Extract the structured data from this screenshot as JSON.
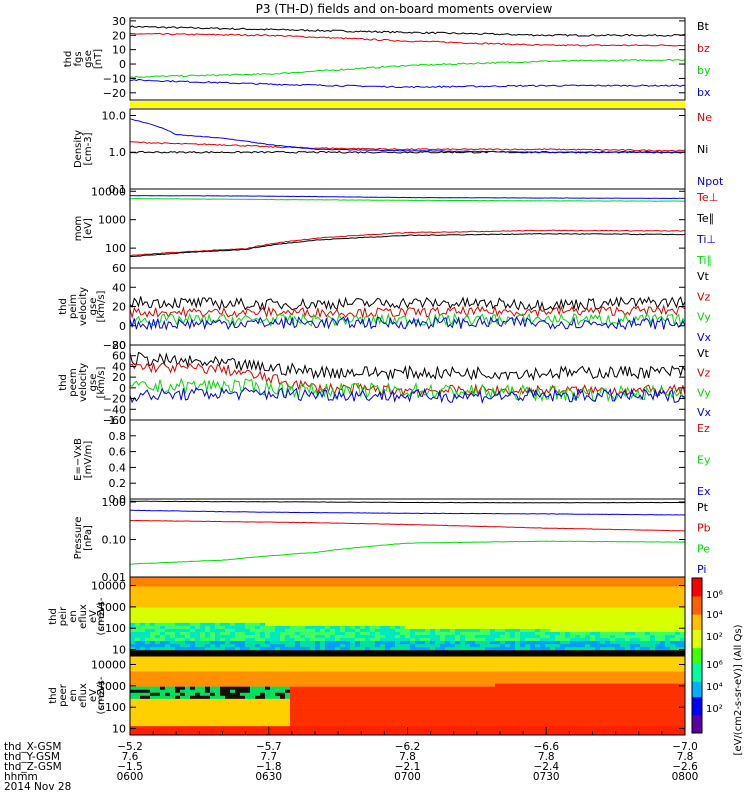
{
  "title": "P3 (TH-D) fields and on-board moments overview",
  "colors": {
    "black": "#000000",
    "red": "#e00000",
    "green": "#00dd00",
    "blue": "#0000ee",
    "yellow": "#ffff00"
  },
  "chart_data": [
    {
      "type": "line",
      "id": "fgs",
      "ylabel": [
        "thd",
        "fgs",
        "gse",
        "[nT]"
      ],
      "ylim": [
        -25,
        32
      ],
      "scale": "linear",
      "ticks": [
        "30",
        "20",
        "10",
        "0",
        "−10",
        "−20"
      ],
      "tickvals": [
        30,
        20,
        10,
        0,
        -10,
        -20
      ],
      "x": [
        0,
        30,
        60,
        90,
        120
      ],
      "series": [
        {
          "name": "Bt",
          "color": "black",
          "values": [
            26,
            24,
            22,
            20,
            20
          ],
          "noise": 0.6
        },
        {
          "name": "bz",
          "color": "red",
          "values": [
            21,
            20,
            16,
            13,
            13
          ],
          "noise": 0.5
        },
        {
          "name": "by",
          "color": "green",
          "values": [
            -9,
            -7,
            -1,
            2,
            3
          ],
          "noise": 0.5
        },
        {
          "name": "bx",
          "color": "blue",
          "values": [
            -11,
            -14,
            -16,
            -15,
            -15
          ],
          "noise": 0.5
        }
      ]
    },
    {
      "type": "line",
      "id": "density",
      "ylabel": [
        "Density",
        "[cm-3]"
      ],
      "ylim": [
        0.1,
        15
      ],
      "scale": "log",
      "ticks": [
        "10.0",
        "1.0",
        "0.1"
      ],
      "tickvals": [
        10,
        1,
        0.1
      ],
      "x": [
        0,
        10,
        20,
        30,
        40,
        60,
        90,
        120
      ],
      "series": [
        {
          "name": "Ne",
          "color": "red",
          "values": [
            1.9,
            1.7,
            1.6,
            1.4,
            1.3,
            1.2,
            1.2,
            1.1
          ],
          "noise": 0.04
        },
        {
          "name": "Ni",
          "color": "black",
          "values": [
            1.0,
            1.0,
            1.0,
            1.0,
            1.0,
            1.0,
            1.0,
            1.0
          ],
          "noise": 0.05
        },
        {
          "name": "Npot",
          "color": "blue",
          "values": [
            8,
            3,
            2.4,
            1.6,
            1.2,
            1.1,
            1.0,
            1.0
          ],
          "noise": 0.02
        }
      ]
    },
    {
      "type": "line",
      "id": "temperature",
      "ylabel": [
        "mom",
        "[eV]"
      ],
      "ylim": [
        20,
        12000
      ],
      "scale": "log",
      "ticks": [
        "10000",
        "1000",
        "100"
      ],
      "tickvals": [
        10000,
        1000,
        100
      ],
      "x": [
        0,
        25,
        40,
        60,
        90,
        120
      ],
      "series": [
        {
          "name": "Te⊥",
          "color": "red",
          "values": [
            55,
            95,
            220,
            350,
            420,
            400
          ],
          "noise": 0.03
        },
        {
          "name": "Te∥",
          "color": "black",
          "values": [
            50,
            90,
            190,
            280,
            320,
            300
          ],
          "noise": 0.03
        },
        {
          "name": "Ti⊥",
          "color": "blue",
          "values": [
            7000,
            6800,
            6500,
            6000,
            5800,
            5600
          ],
          "noise": 0.01
        },
        {
          "name": "Ti∥",
          "color": "green",
          "values": [
            5500,
            5200,
            5000,
            4800,
            4600,
            4500
          ],
          "noise": 0.01
        }
      ]
    },
    {
      "type": "line",
      "id": "peim",
      "ylabel": [
        "thd",
        "peim",
        "velocity",
        "gse",
        "[km/s]"
      ],
      "ylim": [
        -20,
        60
      ],
      "scale": "linear",
      "ticks": [
        "60",
        "40",
        "20",
        "0",
        "−20"
      ],
      "tickvals": [
        60,
        40,
        20,
        0,
        -20
      ],
      "x": [
        0,
        30,
        60,
        90,
        120
      ],
      "series": [
        {
          "name": "Vt",
          "color": "black",
          "values": [
            25,
            22,
            24,
            22,
            25
          ],
          "noise": 6
        },
        {
          "name": "Vz",
          "color": "red",
          "values": [
            14,
            14,
            14,
            15,
            16
          ],
          "noise": 5
        },
        {
          "name": "Vy",
          "color": "green",
          "values": [
            6,
            6,
            6,
            7,
            6
          ],
          "noise": 6
        },
        {
          "name": "Vx",
          "color": "blue",
          "values": [
            2,
            3,
            3,
            3,
            2
          ],
          "noise": 6
        }
      ]
    },
    {
      "type": "line",
      "id": "peem",
      "ylabel": [
        "thd",
        "peem",
        "velocity",
        "gse",
        "[km/s]"
      ],
      "ylim": [
        -60,
        80
      ],
      "scale": "linear",
      "ticks": [
        "80",
        "60",
        "40",
        "20",
        "0",
        "−20",
        "−40",
        "−60"
      ],
      "tickvals": [
        80,
        60,
        40,
        20,
        0,
        -20,
        -40,
        -60
      ],
      "x": [
        0,
        20,
        40,
        60,
        90,
        120
      ],
      "series": [
        {
          "name": "Vt",
          "color": "black",
          "values": [
            55,
            45,
            30,
            28,
            28,
            30
          ],
          "noise": 12
        },
        {
          "name": "Vz",
          "color": "red",
          "values": [
            40,
            35,
            0,
            -5,
            -5,
            -5
          ],
          "noise": 10
        },
        {
          "name": "Vy",
          "color": "green",
          "values": [
            0,
            5,
            -5,
            -5,
            -10,
            -10
          ],
          "noise": 14
        },
        {
          "name": "Vx",
          "color": "blue",
          "values": [
            -15,
            -10,
            -12,
            -15,
            -15,
            -15
          ],
          "noise": 12
        }
      ]
    },
    {
      "type": "line",
      "id": "exb",
      "ylabel": [
        "E=−VxB",
        "[mV/m]"
      ],
      "ylim": [
        0,
        1
      ],
      "scale": "linear",
      "ticks": [
        "1.0",
        "0.8",
        "0.6",
        "0.4",
        "0.2",
        "0.0"
      ],
      "tickvals": [
        1,
        0.8,
        0.6,
        0.4,
        0.2,
        0
      ],
      "x": [],
      "series": [
        {
          "name": "Ez",
          "color": "red",
          "values": []
        },
        {
          "name": "Ey",
          "color": "green",
          "values": []
        },
        {
          "name": "Ex",
          "color": "blue",
          "values": []
        }
      ]
    },
    {
      "type": "line",
      "id": "pressure",
      "ylabel": [
        "Pressure",
        "[nPa]"
      ],
      "ylim": [
        0.01,
        1.2
      ],
      "scale": "log",
      "ticks": [
        "1.00",
        "0.10",
        "0.01"
      ],
      "tickvals": [
        1,
        0.1,
        0.01
      ],
      "x": [
        0,
        20,
        40,
        60,
        90,
        120
      ],
      "series": [
        {
          "name": "Pt",
          "color": "black",
          "values": [
            1.05,
            1.02,
            1.0,
            0.97,
            0.95,
            0.97
          ],
          "noise": 0.01
        },
        {
          "name": "Pb",
          "color": "red",
          "values": [
            0.32,
            0.3,
            0.28,
            0.25,
            0.2,
            0.17
          ],
          "noise": 0.01
        },
        {
          "name": "Pe",
          "color": "green",
          "values": [
            0.022,
            0.028,
            0.045,
            0.08,
            0.09,
            0.085
          ],
          "noise": 0.01
        },
        {
          "name": "Pi",
          "color": "blue",
          "values": [
            0.6,
            0.55,
            0.52,
            0.5,
            0.48,
            0.45
          ],
          "noise": 0.01
        }
      ]
    },
    {
      "type": "heatmap",
      "id": "peir",
      "ylabel": [
        "thd",
        "peir",
        "en",
        "eflux",
        "eV",
        "(cm2-s-",
        "sr-eV)"
      ],
      "ylim": [
        5,
        25000
      ],
      "scale": "log",
      "ticks": [
        "10000",
        "1000",
        "100",
        "10"
      ],
      "tickvals": [
        10000,
        1000,
        100,
        10
      ]
    },
    {
      "type": "heatmap",
      "id": "peer",
      "ylabel": [
        "thd",
        "peer",
        "en",
        "eflux",
        "eV",
        "(cm2-s-",
        "sr-eV)"
      ],
      "ylim": [
        5,
        25000
      ],
      "scale": "log",
      "ticks": [
        "10000",
        "1000",
        "100",
        "10"
      ],
      "tickvals": [
        10000,
        1000,
        100,
        10
      ]
    }
  ],
  "colorbar": {
    "label": "[eV/(cm2-s-sr-eV)] (All Qs)",
    "ticks": [
      "10⁶",
      "10⁴",
      "10²"
    ]
  },
  "xaxis": {
    "row_labels": [
      "thd_X-GSM",
      "thd_Y-GSM",
      "thd_Z-GSM",
      "hhmm",
      "2014 Nov 28"
    ],
    "columns": [
      {
        "x": 0,
        "vals": [
          "−5.2",
          "7.6",
          "−1.5",
          "0600"
        ]
      },
      {
        "x": 30,
        "vals": [
          "−5.7",
          "7.7",
          "−1.8",
          "0630"
        ]
      },
      {
        "x": 60,
        "vals": [
          "−6.2",
          "7.8",
          "−2.1",
          "0700"
        ]
      },
      {
        "x": 90,
        "vals": [
          "−6.6",
          "7.8",
          "−2.4",
          "0730"
        ]
      },
      {
        "x": 120,
        "vals": [
          "−7.0",
          "7.8",
          "−2.6",
          "0800"
        ]
      }
    ]
  }
}
